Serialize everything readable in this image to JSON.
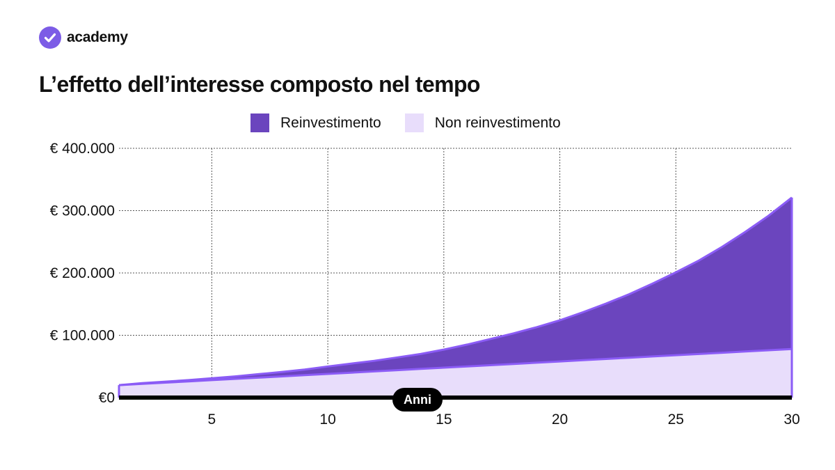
{
  "brand": {
    "name": "academy",
    "logo_icon": "checkmark-badge-icon",
    "logo_color": "#7c5ce6"
  },
  "colors": {
    "reinvest_fill": "#6b45be",
    "reinvest_line": "#8b5cf6",
    "noreinvest_fill": "#e8ddfb",
    "axis": "#000000",
    "grid": "#555555"
  },
  "chart_data": {
    "type": "area",
    "title": "L’effetto dell’interesse composto nel tempo",
    "xlabel": "Anni",
    "ylabel": "",
    "xlim": [
      1,
      30
    ],
    "ylim": [
      0,
      400000
    ],
    "x_ticks": [
      5,
      10,
      15,
      20,
      25,
      30
    ],
    "x_tick_labels": [
      "5",
      "10",
      "15",
      "20",
      "25",
      "30"
    ],
    "y_ticks": [
      0,
      100000,
      200000,
      300000,
      400000
    ],
    "y_tick_labels": [
      "€0",
      "€ 100.000",
      "€ 200.000",
      "€ 300.000",
      "€ 400.000"
    ],
    "grid": true,
    "legend_position": "top",
    "x": [
      1,
      2,
      3,
      4,
      5,
      6,
      7,
      8,
      9,
      10,
      11,
      12,
      13,
      14,
      15,
      16,
      17,
      18,
      19,
      20,
      21,
      22,
      23,
      24,
      25,
      26,
      27,
      28,
      29,
      30
    ],
    "series": [
      {
        "name": "Reinvestimento",
        "values": [
          20000,
          23200,
          25600,
          28000,
          31000,
          34000,
          37500,
          41000,
          45000,
          50000,
          54500,
          59000,
          64500,
          70000,
          77000,
          85000,
          94000,
          103000,
          113000,
          124000,
          137000,
          151000,
          166000,
          183000,
          201000,
          220000,
          242000,
          266000,
          292000,
          321000
        ]
      },
      {
        "name": "Non reinvestimento",
        "values": [
          20000,
          22000,
          24000,
          26000,
          28000,
          30000,
          32000,
          34000,
          36000,
          38000,
          40000,
          42000,
          44000,
          46000,
          48000,
          50000,
          52000,
          54000,
          56000,
          58000,
          60000,
          62000,
          64000,
          66000,
          68000,
          70000,
          72000,
          74000,
          76000,
          78000
        ]
      }
    ]
  }
}
